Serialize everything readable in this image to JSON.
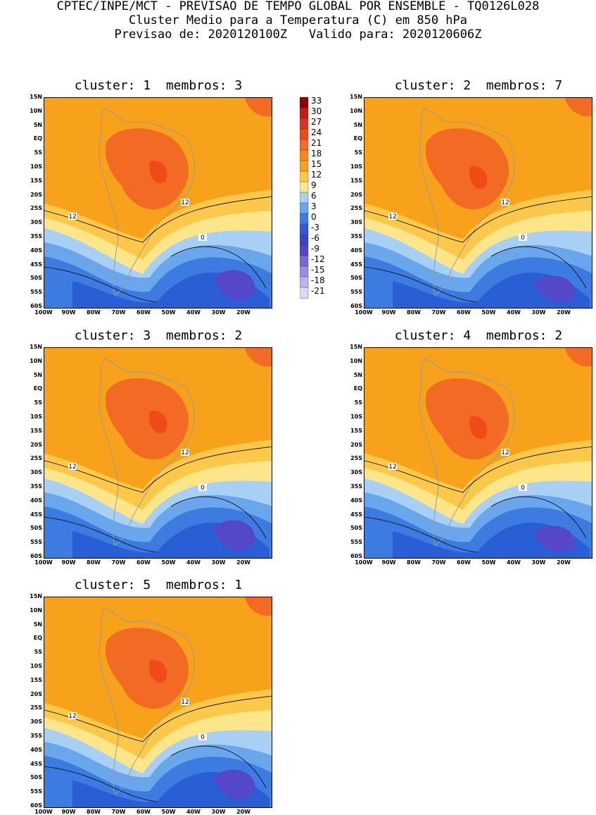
{
  "header": {
    "line1": "CPTEC/INPE/MCT - PREVISAO DE TEMPO GLOBAL POR ENSEMBLE - TQ0126L028",
    "line2": "Cluster Medio para a Temperatura (C) em 850 hPa",
    "line3": "Previsao de: 2020120100Z   Valido para: 2020120606Z"
  },
  "panels": [
    {
      "title": "cluster: 1  membros: 3"
    },
    {
      "title": "cluster: 2  membros: 7"
    },
    {
      "title": "cluster: 3  membros: 2"
    },
    {
      "title": "cluster: 4  membros: 2"
    },
    {
      "title": "cluster: 5  membros: 1"
    }
  ],
  "lat_labels": [
    "15N",
    "10N",
    "5N",
    "EQ",
    "5S",
    "10S",
    "15S",
    "20S",
    "25S",
    "30S",
    "35S",
    "40S",
    "45S",
    "50S",
    "55S",
    "60S"
  ],
  "lon_labels": [
    "100W",
    "90W",
    "80W",
    "70W",
    "60W",
    "50W",
    "40W",
    "30W",
    "20W"
  ],
  "contour_labels": [
    "12",
    "12",
    "0"
  ],
  "colorbar": {
    "labels": [
      "33",
      "30",
      "27",
      "24",
      "21",
      "18",
      "15",
      "12",
      "9",
      "6",
      "3",
      "0",
      "-3",
      "-6",
      "-9",
      "-12",
      "-15",
      "-18",
      "-21"
    ],
    "colors": [
      "#8b0000",
      "#c41a1a",
      "#e03020",
      "#f04a18",
      "#f26a24",
      "#f58a1a",
      "#f7a21a",
      "#fbc84a",
      "#fde68a",
      "#a8d0f5",
      "#6aa6ec",
      "#3c7ce0",
      "#2a5ed4",
      "#3a44c4",
      "#5548c8",
      "#7a66d6",
      "#a08ae2",
      "#c2b0ec",
      "#e0d6f6"
    ]
  }
}
